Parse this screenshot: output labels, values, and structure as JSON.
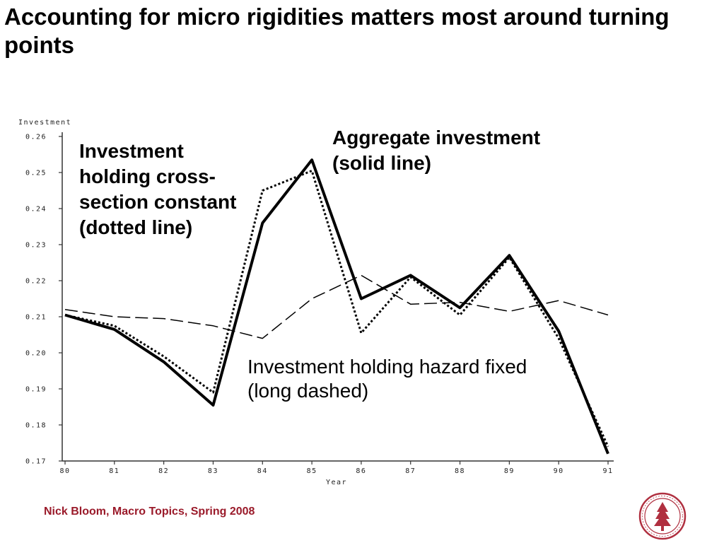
{
  "slide": {
    "title": "Accounting for micro rigidities matters most around turning points",
    "footer": "Nick Bloom, Macro Topics, Spring 2008"
  },
  "annotations": {
    "cross_section": "Investment holding cross-section constant (dotted line)",
    "aggregate": "Aggregate investment (solid line)",
    "hazard": "Investment holding hazard fixed (long dashed)"
  },
  "colors": {
    "footer": "#9a1a2a",
    "seal": "#b03040",
    "lines": "#000000"
  },
  "chart_data": {
    "type": "line",
    "xlabel": "Year",
    "ylabel": "Investment",
    "x": [
      "80",
      "81",
      "82",
      "83",
      "84",
      "85",
      "86",
      "87",
      "88",
      "89",
      "90",
      "91"
    ],
    "ylim": [
      0.17,
      0.26
    ],
    "yticks": [
      "0.26",
      "0.25",
      "0.24",
      "0.23",
      "0.22",
      "0.21",
      "0.20",
      "0.19",
      "0.18",
      "0.17"
    ],
    "series": [
      {
        "name": "Aggregate investment",
        "style": "solid",
        "values": [
          0.2105,
          0.2065,
          0.1975,
          0.1855,
          0.236,
          0.2535,
          0.215,
          0.2215,
          0.2125,
          0.227,
          0.206,
          0.172
        ]
      },
      {
        "name": "Investment holding cross-section constant",
        "style": "dotted",
        "values": [
          0.2105,
          0.2075,
          0.199,
          0.189,
          0.245,
          0.2505,
          0.2055,
          0.221,
          0.2105,
          0.2265,
          0.204,
          0.174
        ]
      },
      {
        "name": "Investment holding hazard fixed",
        "style": "long-dashed",
        "values": [
          0.212,
          0.21,
          0.2095,
          0.2075,
          0.204,
          0.215,
          0.2215,
          0.2135,
          0.214,
          0.2115,
          0.2145,
          0.2105
        ]
      }
    ]
  }
}
